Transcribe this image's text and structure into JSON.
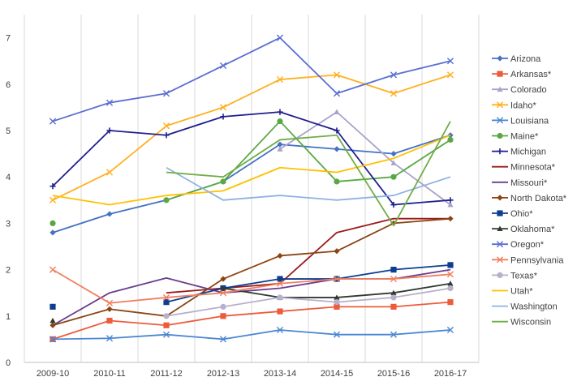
{
  "chart_data": {
    "type": "line",
    "title": "",
    "xlabel": "",
    "ylabel": "",
    "categories": [
      "2009-10",
      "2010-11",
      "2011-12",
      "2012-13",
      "2013-14",
      "2014-15",
      "2015-16",
      "2016-17"
    ],
    "ylim": [
      0,
      7.5
    ],
    "yticks": [
      0,
      1,
      2,
      3,
      4,
      5,
      6,
      7
    ],
    "grid": "vertical",
    "legend_position": "right",
    "series": [
      {
        "name": "Arizona",
        "color": "#4472c4",
        "marker": "diamond",
        "values": [
          2.8,
          3.2,
          3.5,
          3.9,
          4.7,
          4.6,
          4.5,
          4.9
        ]
      },
      {
        "name": "Arkansas*",
        "color": "#ed5b3b",
        "marker": "square",
        "values": [
          0.5,
          0.9,
          0.8,
          1.0,
          1.1,
          1.2,
          1.2,
          1.3
        ]
      },
      {
        "name": "Colorado",
        "color": "#a9a2c9",
        "marker": "triangle",
        "values": [
          null,
          null,
          null,
          null,
          4.6,
          5.4,
          4.3,
          3.4
        ]
      },
      {
        "name": "Idaho*",
        "color": "#ffb020",
        "marker": "x",
        "values": [
          3.5,
          4.1,
          5.1,
          5.5,
          6.1,
          6.2,
          5.8,
          6.2
        ]
      },
      {
        "name": "Louisiana",
        "color": "#4a86d4",
        "marker": "x",
        "values": [
          0.5,
          0.52,
          0.6,
          0.5,
          0.7,
          0.6,
          0.6,
          0.7
        ]
      },
      {
        "name": "Maine*",
        "color": "#5aa844",
        "marker": "circle",
        "values": [
          3.0,
          null,
          3.5,
          3.9,
          5.2,
          3.9,
          4.0,
          4.8
        ]
      },
      {
        "name": "Michigan",
        "color": "#1f1f8f",
        "marker": "plus",
        "values": [
          3.8,
          5.0,
          4.9,
          5.3,
          5.4,
          5.0,
          3.4,
          3.5
        ]
      },
      {
        "name": "Minnesota*",
        "color": "#9c1a1a",
        "marker": "none",
        "values": [
          null,
          null,
          1.5,
          1.6,
          1.7,
          2.8,
          3.1,
          3.1
        ]
      },
      {
        "name": "Missouri*",
        "color": "#6a3d8f",
        "marker": "none",
        "values": [
          0.8,
          1.5,
          1.82,
          1.5,
          1.6,
          1.8,
          1.8,
          2.0
        ]
      },
      {
        "name": "North Dakota*",
        "color": "#8b4513",
        "marker": "diamond",
        "values": [
          0.8,
          1.15,
          1.0,
          1.8,
          2.3,
          2.4,
          3.0,
          3.1
        ]
      },
      {
        "name": "Ohio*",
        "color": "#0b3d91",
        "marker": "square",
        "values": [
          1.2,
          null,
          1.3,
          1.6,
          1.8,
          1.8,
          2.0,
          2.1
        ]
      },
      {
        "name": "Oklahoma*",
        "color": "#2f3b2f",
        "marker": "triangle",
        "values": [
          0.9,
          null,
          null,
          1.6,
          1.4,
          1.4,
          1.5,
          1.7
        ]
      },
      {
        "name": "Oregon*",
        "color": "#5b6ed1",
        "marker": "x",
        "values": [
          5.2,
          5.6,
          5.8,
          6.4,
          7.0,
          5.8,
          6.2,
          6.5
        ]
      },
      {
        "name": "Pennsylvania",
        "color": "#f07f5f",
        "marker": "x",
        "values": [
          2.0,
          1.28,
          1.4,
          1.5,
          1.7,
          1.8,
          1.8,
          1.9
        ]
      },
      {
        "name": "Texas*",
        "color": "#b8b0cc",
        "marker": "circle",
        "values": [
          null,
          null,
          1.0,
          1.2,
          1.4,
          1.3,
          1.4,
          1.6
        ]
      },
      {
        "name": "Utah*",
        "color": "#ffc000",
        "marker": "none",
        "values": [
          3.6,
          3.4,
          3.6,
          3.7,
          4.2,
          4.1,
          4.4,
          4.9
        ]
      },
      {
        "name": "Washington",
        "color": "#8db4e2",
        "marker": "none",
        "values": [
          null,
          null,
          4.2,
          3.5,
          3.6,
          3.5,
          3.6,
          4.0
        ]
      },
      {
        "name": "Wisconsin",
        "color": "#70ad47",
        "marker": "none",
        "values": [
          null,
          null,
          4.1,
          4.0,
          4.8,
          4.9,
          2.95,
          5.2
        ]
      }
    ]
  }
}
